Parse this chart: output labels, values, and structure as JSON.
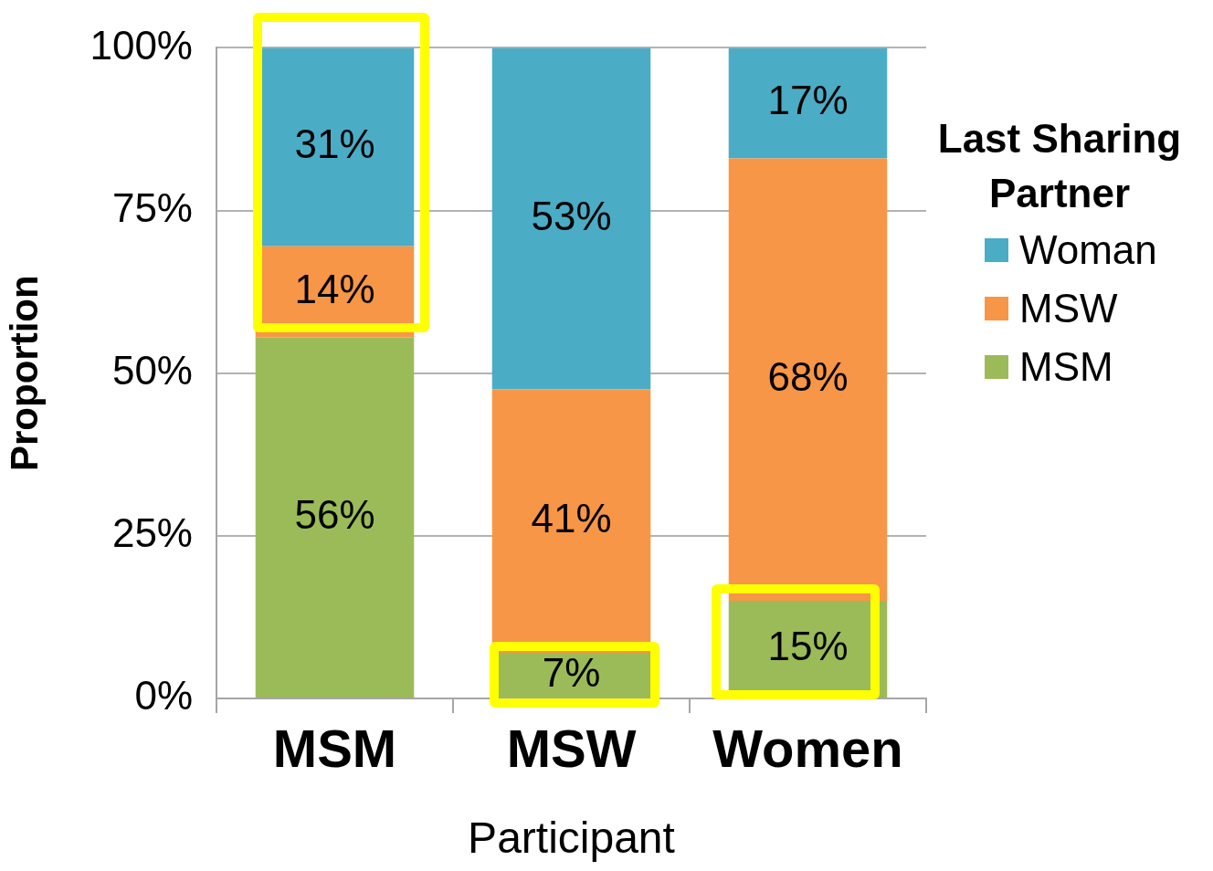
{
  "chart_data": {
    "type": "bar",
    "stacked": true,
    "xlabel": "Participant",
    "ylabel": "Proportion",
    "legend_title": "Last Sharing Partner",
    "legend": "right",
    "categories": [
      "MSM",
      "MSW",
      "Women"
    ],
    "ylim": [
      0,
      100
    ],
    "yticks": [
      {
        "value": 0,
        "label": "0%"
      },
      {
        "value": 25,
        "label": "25%"
      },
      {
        "value": 50,
        "label": "50%"
      },
      {
        "value": 75,
        "label": "75%"
      },
      {
        "value": 100,
        "label": "100%"
      }
    ],
    "grid": "y",
    "series": [
      {
        "name": "MSM",
        "color": "#9bbb59",
        "values": [
          55.5,
          7,
          15
        ],
        "value_labels": [
          "56%",
          "7%",
          "15%"
        ]
      },
      {
        "name": "MSW",
        "color": "#f79646",
        "values": [
          14,
          40.5,
          68
        ],
        "value_labels": [
          "14%",
          "41%",
          "68%"
        ]
      },
      {
        "name": "Woman",
        "color": "#4bacc6",
        "values": [
          30.5,
          52.5,
          17
        ],
        "value_labels": [
          "31%",
          "53%",
          "17%"
        ]
      }
    ]
  }
}
